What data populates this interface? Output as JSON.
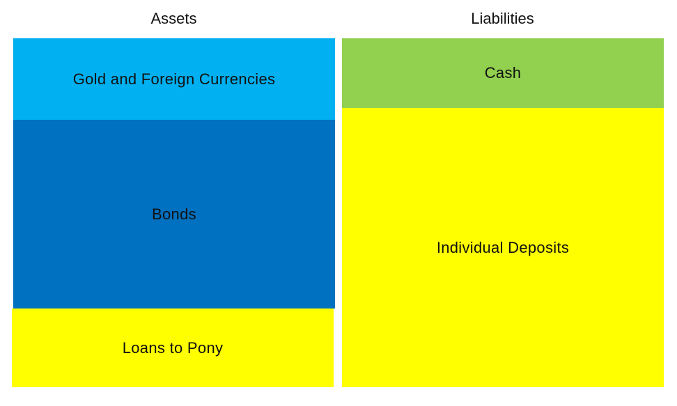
{
  "assets": {
    "heading": "Assets",
    "items": [
      {
        "label": "Gold and Foreign Currencies",
        "color": "#00B0F0"
      },
      {
        "label": "Bonds",
        "color": "#0070C0"
      },
      {
        "label": "Loans to Pony",
        "color": "#FFFF00"
      }
    ]
  },
  "liabilities": {
    "heading": "Liabilities",
    "items": [
      {
        "label": "Cash",
        "color": "#92D050"
      },
      {
        "label": "Individual Deposits",
        "color": "#FFFF00"
      }
    ]
  }
}
